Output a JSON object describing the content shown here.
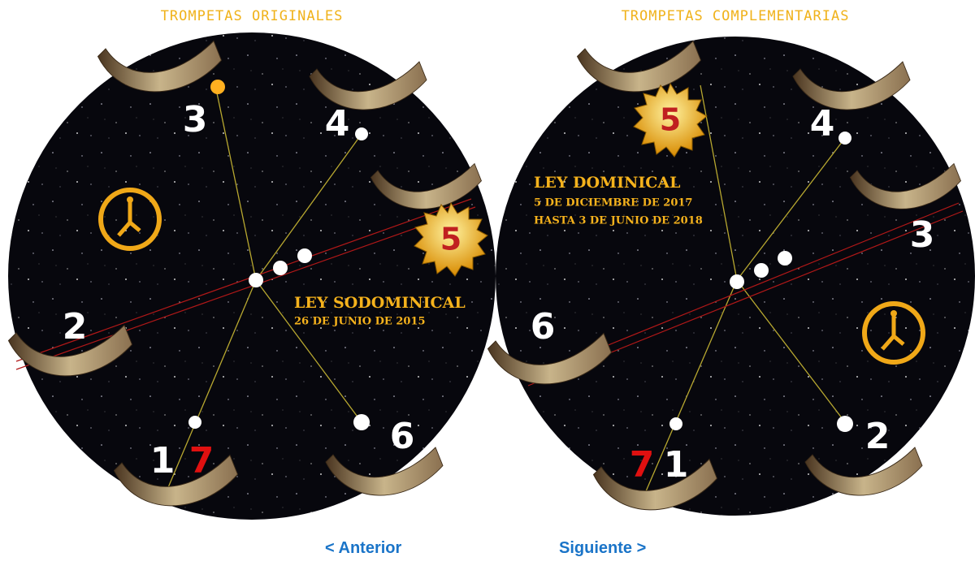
{
  "panels": [
    {
      "title": "TROMPETAS ORIGINALES",
      "numbers": [
        "1",
        "7",
        "2",
        "3",
        "4",
        "5",
        "6"
      ],
      "law": "LEY SODOMINICAL",
      "dates": [
        "26 DE JUNIO DE 2015"
      ]
    },
    {
      "title": "TROMPETAS COMPLEMENTARIAS",
      "numbers": [
        "7",
        "1",
        "6",
        "5",
        "4",
        "3",
        "2"
      ],
      "law": "LEY DOMINICAL",
      "dates": [
        "5 DE DICIEMBRE DE 2017",
        "HASTA 3 DE JUNIO DE 2018"
      ]
    }
  ],
  "nav": {
    "prev": "< Anterior",
    "next": "Siguiente >"
  }
}
